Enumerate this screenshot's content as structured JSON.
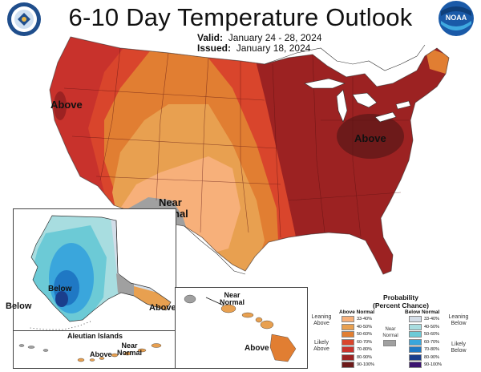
{
  "header": {
    "title": "6-10 Day Temperature Outlook",
    "valid_label": "Valid:",
    "valid_value": "January 24 - 28, 2024",
    "issued_label": "Issued:",
    "issued_value": "January 18, 2024"
  },
  "logos": {
    "left": "department-of-commerce-seal",
    "right": "noaa-logo"
  },
  "map_labels": {
    "above_west": "Above",
    "above_east": "Above",
    "near_normal_line1": "Near",
    "near_normal_line2": "Normal"
  },
  "alaska": {
    "below_label": "Below",
    "below_outside": "Below",
    "above_label": "Above"
  },
  "aleutians": {
    "title": "Aleutian Islands",
    "above_label": "Above",
    "near_line1": "Near",
    "near_line2": "Normal"
  },
  "hawaii": {
    "near_line1": "Near",
    "near_line2": "Normal",
    "above_label": "Above"
  },
  "legend": {
    "title_line1": "Probability",
    "title_line2": "(Percent Chance)",
    "above_head": "Above Normal",
    "below_head": "Below Normal",
    "above_rows": [
      {
        "label": "33-40%",
        "color": "#f7b07a"
      },
      {
        "label": "40-50%",
        "color": "#e8a050"
      },
      {
        "label": "50-60%",
        "color": "#e17e32"
      },
      {
        "label": "60-70%",
        "color": "#d9452c"
      },
      {
        "label": "70-80%",
        "color": "#c8322c"
      },
      {
        "label": "80-90%",
        "color": "#9c2222"
      },
      {
        "label": "90-100%",
        "color": "#6d1a1a"
      }
    ],
    "below_rows": [
      {
        "label": "33-40%",
        "color": "#d3dde8"
      },
      {
        "label": "40-50%",
        "color": "#a8dde0"
      },
      {
        "label": "50-60%",
        "color": "#6ccad6"
      },
      {
        "label": "60-70%",
        "color": "#3aa6dc"
      },
      {
        "label": "70-80%",
        "color": "#1f78c4"
      },
      {
        "label": "80-90%",
        "color": "#1a3e8c"
      },
      {
        "label": "90-100%",
        "color": "#3c1470"
      }
    ],
    "leaning_above_1": "Leaning",
    "leaning_above_2": "Above",
    "likely_above_1": "Likely",
    "likely_above_2": "Above",
    "near_normal_1": "Near",
    "near_normal_2": "Normal",
    "near_normal_color": "#a0a0a0",
    "leaning_below_1": "Leaning",
    "leaning_below_2": "Below",
    "likely_below_1": "Likely",
    "likely_below_2": "Below"
  }
}
